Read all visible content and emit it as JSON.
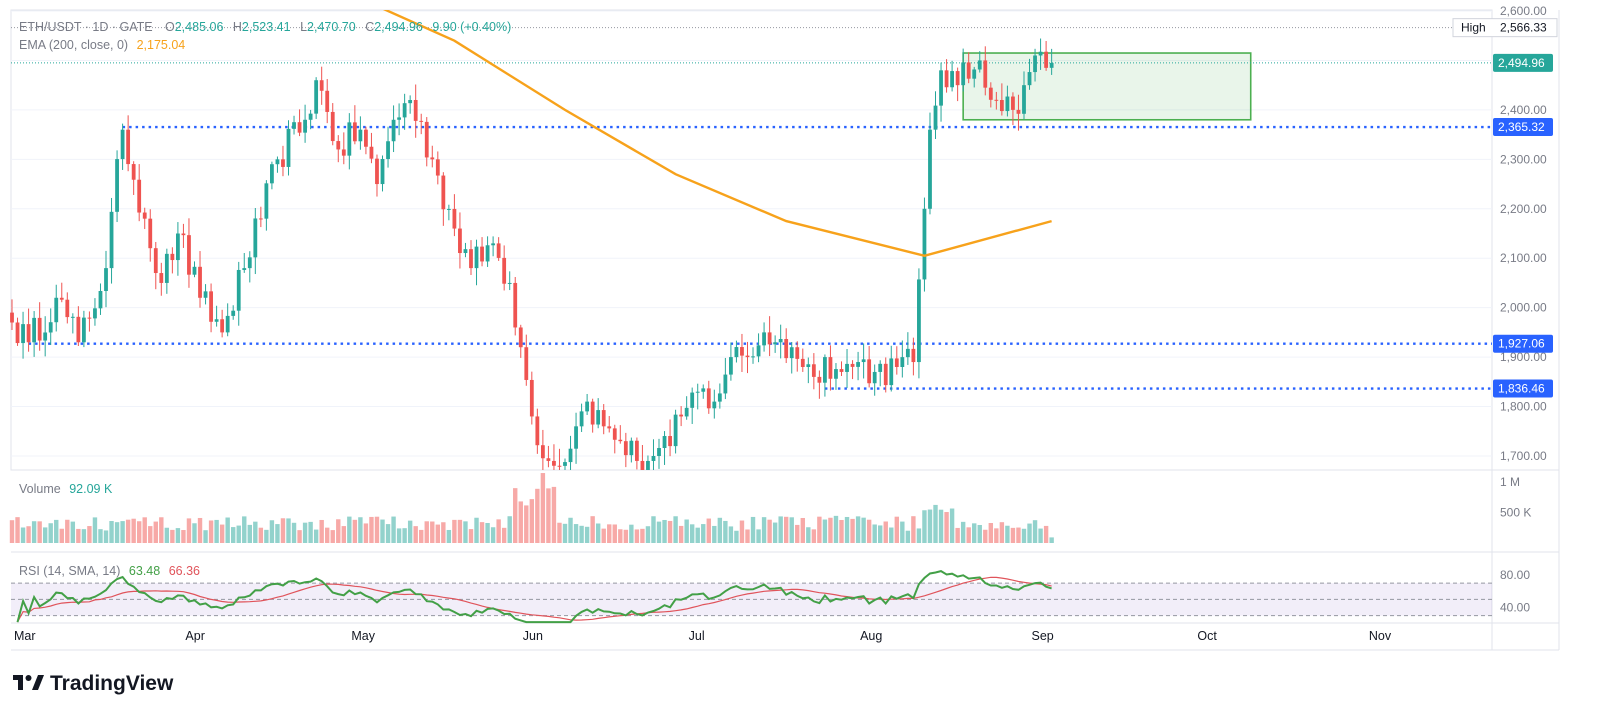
{
  "header": {
    "symbol": "ETH/USDT · 1D · GATE",
    "o_label": "O",
    "o_value": "2,485.06",
    "h_label": "H",
    "h_value": "2,523.41",
    "l_label": "L",
    "l_value": "2,470.70",
    "c_label": "C",
    "c_value": "2,494.96",
    "change": "9.90 (+0.40%)",
    "ema_label": "EMA (200, close, 0)",
    "ema_value": "2,175.04"
  },
  "volume_pane": {
    "label": "Volume",
    "value": "92.09 K"
  },
  "rsi_pane": {
    "label": "RSI (14, SMA, 14)",
    "rsi_value": "63.48",
    "sma_value": "66.36"
  },
  "branding": {
    "logo_text": "TradingView"
  },
  "colors": {
    "up": "#26a69a",
    "down": "#ef5350",
    "ema": "#f7a21b",
    "level": "#2962ff",
    "rsi": "#43a047",
    "rsi_sma": "#e0545b",
    "box_stroke": "#4caf50",
    "box_fill": "rgba(76,175,80,0.12)",
    "rsi_band": "rgba(126,87,194,0.10)"
  },
  "chart_data": {
    "type": "candlestick",
    "price_axis": {
      "ticks": [
        1700,
        1800,
        1900,
        2000,
        2100,
        2200,
        2300,
        2400,
        2500,
        2600
      ],
      "tick_labels": [
        "1,700.00",
        "1,800.00",
        "1,900.00",
        "2,000.00",
        "2,100.00",
        "2,200.00",
        "2,300.00",
        "2,400.00",
        "2,500.00",
        "2,600.00"
      ],
      "range": [
        1690,
        2600
      ]
    },
    "time_axis": {
      "labels": [
        "Mar",
        "Apr",
        "May",
        "Jun",
        "Jul",
        "Aug",
        "Sep",
        "Oct",
        "Nov"
      ],
      "label_days": [
        0,
        31,
        61,
        92,
        122,
        153,
        184,
        214,
        245
      ]
    },
    "price_labels": [
      {
        "kind": "high",
        "label": "High",
        "value": 2566.33,
        "text": "2,566.33"
      },
      {
        "kind": "last",
        "value": 2494.96,
        "text": "2,494.96"
      },
      {
        "kind": "level",
        "value": 2365.32,
        "text": "2,365.32"
      },
      {
        "kind": "level",
        "value": 1927.06,
        "text": "1,927.06"
      },
      {
        "kind": "level",
        "value": 1836.46,
        "text": "1,836.46"
      }
    ],
    "horizontal_levels": [
      {
        "value": 2365.32,
        "from_day": 20
      },
      {
        "value": 1927.06,
        "from_day": 3
      },
      {
        "value": 1836.46,
        "from_day": 147
      }
    ],
    "consolidation_box": {
      "from_day": 172,
      "to_day": 224,
      "low": 2380,
      "high": 2515
    },
    "waypoints": [
      [
        0,
        1970
      ],
      [
        3,
        1930
      ],
      [
        8,
        2020
      ],
      [
        12,
        1930
      ],
      [
        17,
        2080
      ],
      [
        20,
        2360
      ],
      [
        24,
        2180
      ],
      [
        27,
        2050
      ],
      [
        30,
        2150
      ],
      [
        34,
        2020
      ],
      [
        38,
        1950
      ],
      [
        42,
        2080
      ],
      [
        45,
        2180
      ],
      [
        48,
        2300
      ],
      [
        53,
        2380
      ],
      [
        55,
        2460
      ],
      [
        59,
        2320
      ],
      [
        63,
        2360
      ],
      [
        66,
        2250
      ],
      [
        69,
        2380
      ],
      [
        72,
        2420
      ],
      [
        76,
        2300
      ],
      [
        80,
        2160
      ],
      [
        83,
        2080
      ],
      [
        87,
        2130
      ],
      [
        90,
        2050
      ],
      [
        92,
        1920
      ],
      [
        94,
        1780
      ],
      [
        97,
        1690
      ],
      [
        99,
        1680
      ],
      [
        102,
        1760
      ],
      [
        104,
        1810
      ],
      [
        107,
        1760
      ],
      [
        110,
        1730
      ],
      [
        113,
        1690
      ],
      [
        116,
        1700
      ],
      [
        119,
        1720
      ],
      [
        121,
        1780
      ],
      [
        124,
        1830
      ],
      [
        127,
        1810
      ],
      [
        130,
        1900
      ],
      [
        133,
        1900
      ],
      [
        136,
        1950
      ],
      [
        138,
        1930
      ],
      [
        141,
        1920
      ],
      [
        143,
        1880
      ],
      [
        145,
        1860
      ],
      [
        147,
        1900
      ],
      [
        150,
        1870
      ],
      [
        153,
        1890
      ],
      [
        156,
        1870
      ],
      [
        160,
        1880
      ],
      [
        163,
        1890
      ],
      [
        165,
        2200
      ],
      [
        166,
        2360
      ],
      [
        168,
        2480
      ],
      [
        171,
        2450
      ],
      [
        175,
        2500
      ],
      [
        178,
        2420
      ],
      [
        181,
        2400
      ],
      [
        183,
        2450
      ],
      [
        185,
        2510
      ],
      [
        187,
        2485
      ],
      [
        188,
        2495
      ]
    ],
    "volume_scale": {
      "max": 1200000,
      "tick_labels": [
        "1 M",
        "500 K"
      ],
      "ticks": [
        1000000,
        500000
      ]
    },
    "volume_last": 92090,
    "ema_points": [
      [
        0,
        2760
      ],
      [
        32,
        2670
      ],
      [
        60,
        2640
      ],
      [
        80,
        2540
      ],
      [
        100,
        2400
      ],
      [
        120,
        2270
      ],
      [
        140,
        2175
      ],
      [
        165,
        2105
      ],
      [
        188,
        2175
      ]
    ],
    "rsi_axis": {
      "ticks": [
        80,
        40
      ],
      "tick_labels": [
        "80.00",
        "40.00"
      ],
      "range": [
        20,
        100
      ],
      "band": [
        30,
        70
      ],
      "mid": 50
    },
    "rsi_last": 63.48,
    "rsi_sma_last": 66.36
  }
}
